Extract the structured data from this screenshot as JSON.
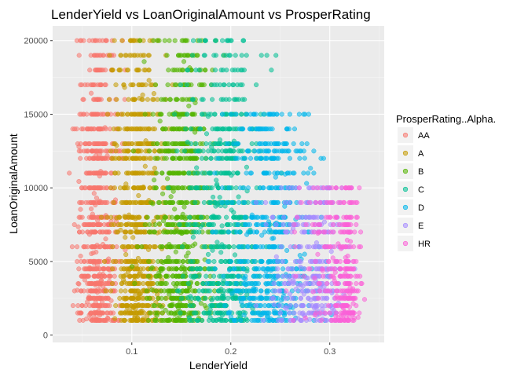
{
  "chart_data": {
    "type": "scatter",
    "title": "LenderYield vs LoanOriginalAmount vs ProsperRating",
    "xlabel": "LenderYield",
    "ylabel": "LoanOriginalAmount",
    "xlim": [
      0.02,
      0.355
    ],
    "ylim": [
      -500,
      21000
    ],
    "x_ticks": [
      0.1,
      0.2,
      0.3
    ],
    "x_tick_labels": [
      "0.1",
      "0.2",
      "0.3"
    ],
    "y_ticks": [
      0,
      5000,
      10000,
      15000,
      20000
    ],
    "y_tick_labels": [
      "0",
      "5000",
      "10000",
      "15000",
      "20000"
    ],
    "grid": true,
    "background": "#ebebeb",
    "legend": {
      "title": "ProsperRating..Alpha.",
      "position": "right"
    },
    "series": [
      {
        "name": "AA",
        "color": "#f8766d",
        "x_range": [
          0.03,
          0.11
        ],
        "x_center": 0.065,
        "y_range": [
          1000,
          20000
        ],
        "density": 0.85
      },
      {
        "name": "A",
        "color": "#c49a00",
        "x_range": [
          0.06,
          0.16
        ],
        "x_center": 0.105,
        "y_range": [
          1000,
          20000
        ],
        "density": 0.85
      },
      {
        "name": "B",
        "color": "#53b400",
        "x_range": [
          0.09,
          0.21
        ],
        "x_center": 0.15,
        "y_range": [
          1000,
          20000
        ],
        "density": 0.85
      },
      {
        "name": "C",
        "color": "#00c094",
        "x_range": [
          0.12,
          0.27
        ],
        "x_center": 0.195,
        "y_range": [
          1000,
          20000
        ],
        "density": 0.8
      },
      {
        "name": "D",
        "color": "#00b6eb",
        "x_range": [
          0.16,
          0.32
        ],
        "x_center": 0.24,
        "y_range": [
          1000,
          15000
        ],
        "density": 0.75
      },
      {
        "name": "E",
        "color": "#a58aff",
        "x_range": [
          0.2,
          0.34
        ],
        "x_center": 0.285,
        "y_range": [
          1000,
          10000
        ],
        "density": 0.6
      },
      {
        "name": "HR",
        "color": "#fb61d7",
        "x_range": [
          0.24,
          0.34
        ],
        "x_center": 0.315,
        "y_range": [
          1000,
          10000
        ],
        "density": 0.55
      }
    ],
    "common_loan_amounts": [
      1000,
      1500,
      2000,
      2500,
      3000,
      3500,
      4000,
      4500,
      5000,
      6000,
      7000,
      7500,
      8000,
      9000,
      10000,
      11000,
      12000,
      12500,
      13000,
      14000,
      15000,
      16000,
      17000,
      18000,
      19000,
      20000
    ]
  }
}
